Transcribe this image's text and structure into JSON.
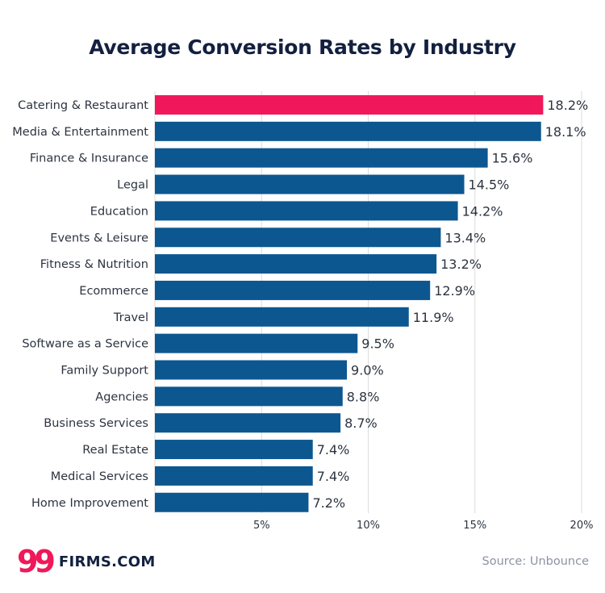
{
  "chart_data": {
    "type": "bar",
    "orientation": "horizontal",
    "title": "Average Conversion Rates by Industry",
    "categories": [
      "Catering & Restaurant",
      "Media & Entertainment",
      "Finance & Insurance",
      "Legal",
      "Education",
      "Events & Leisure",
      "Fitness & Nutrition",
      "Ecommerce",
      "Travel",
      "Software as a Service",
      "Family Support",
      "Agencies",
      "Business Services",
      "Real Estate",
      "Medical Services",
      "Home Improvement"
    ],
    "values": [
      18.2,
      18.1,
      15.6,
      14.5,
      14.2,
      13.4,
      13.2,
      12.9,
      11.9,
      9.5,
      9.0,
      8.8,
      8.7,
      7.4,
      7.4,
      7.2
    ],
    "value_labels": [
      "18.2%",
      "18.1%",
      "15.6%",
      "14.5%",
      "14.2%",
      "13.4%",
      "13.2%",
      "12.9%",
      "11.9%",
      "9.5%",
      "9.0%",
      "8.8%",
      "8.7%",
      "7.4%",
      "7.4%",
      "7.2%"
    ],
    "highlight_index": 0,
    "xlim": [
      0,
      20
    ],
    "xticks": [
      5,
      10,
      15,
      20
    ],
    "xtick_labels": [
      "5%",
      "10%",
      "15%",
      "20%"
    ],
    "grid": true,
    "colors": {
      "bar": "#0d5791",
      "highlight": "#f0185a",
      "grid": "#dcdcdc",
      "text": "#2c3440",
      "title": "#13203f"
    }
  },
  "branding": {
    "logo_mark": "99",
    "logo_text": "FIRMS.COM",
    "source": "Source: Unbounce"
  }
}
